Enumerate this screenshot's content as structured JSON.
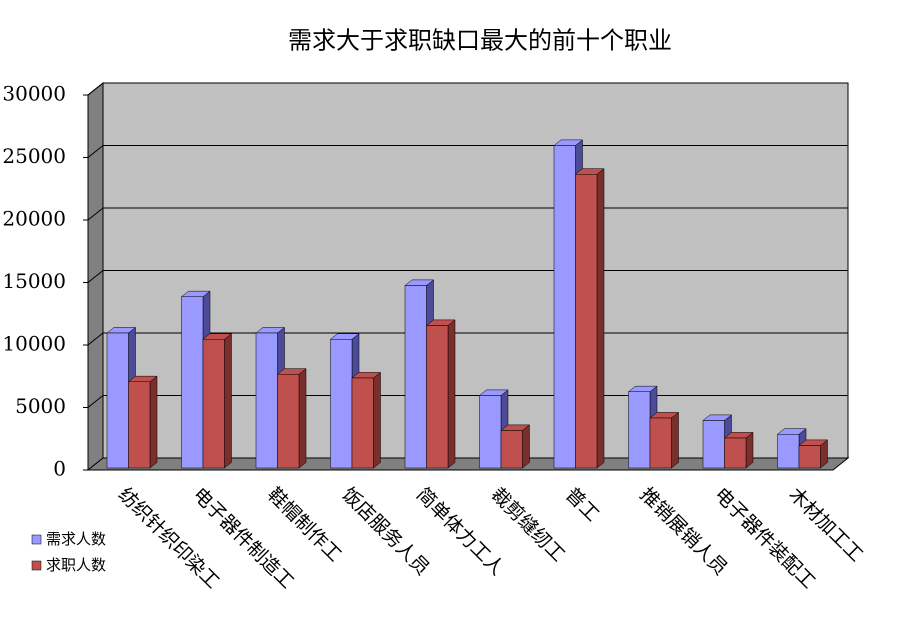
{
  "chart_data": {
    "type": "bar3d",
    "title": "需求大于求职缺口最大的前十个职业",
    "categories": [
      "纺织针织印染工",
      "电子器件制造工",
      "鞋帽制作工",
      "饭店服务人员",
      "简单体力工人",
      "裁剪缝纫工",
      "普工",
      "推销展销人员",
      "电子器件装配工",
      "木材加工工"
    ],
    "series": [
      {
        "name": "需求人数",
        "color": "#9999ff",
        "side": "#4b4b99",
        "values": [
          10800,
          13700,
          10800,
          10300,
          14600,
          5800,
          25800,
          6100,
          3800,
          2700
        ]
      },
      {
        "name": "求职人数",
        "color": "#c0504d",
        "side": "#7a2f2d",
        "values": [
          6900,
          10300,
          7500,
          7200,
          11400,
          3000,
          23500,
          4000,
          2400,
          1800
        ]
      }
    ],
    "ylim": [
      0,
      30000
    ],
    "yticks": [
      0,
      5000,
      10000,
      15000,
      20000,
      25000,
      30000
    ],
    "grid": true,
    "legend": "bottom-left"
  }
}
